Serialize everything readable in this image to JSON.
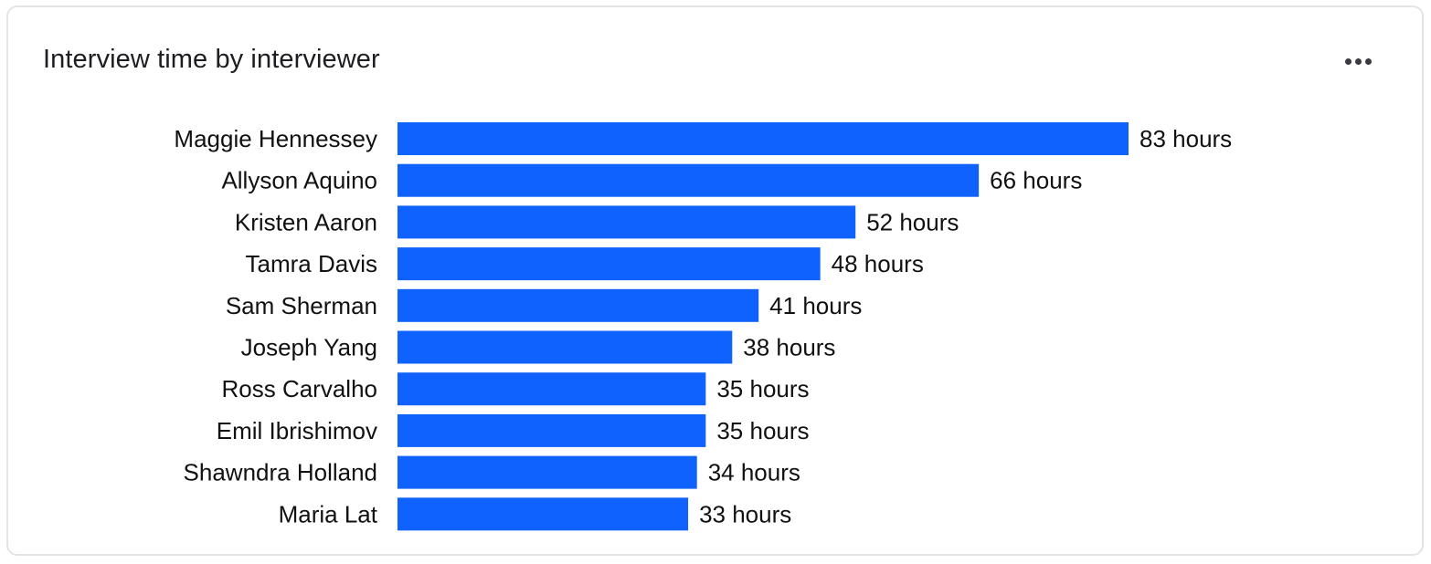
{
  "card": {
    "title": "Interview time by interviewer",
    "menu_icon": "more-horizontal-icon"
  },
  "colors": {
    "bar": "#0F62FE",
    "text": "#111113",
    "border": "#E4E4E7"
  },
  "chart_data": {
    "type": "bar",
    "orientation": "horizontal",
    "title": "Interview time by interviewer",
    "xlabel": "",
    "ylabel": "",
    "unit": "hours",
    "grid": false,
    "legend": "none",
    "categories": [
      "Maggie Hennessey",
      "Allyson Aquino",
      "Kristen Aaron",
      "Tamra Davis",
      "Sam Sherman",
      "Joseph Yang",
      "Ross Carvalho",
      "Emil Ibrishimov",
      "Shawndra Holland",
      "Maria Lat"
    ],
    "values": [
      83,
      66,
      52,
      48,
      41,
      38,
      35,
      35,
      34,
      33
    ],
    "value_labels": [
      "83 hours",
      "66 hours",
      "52 hours",
      "48 hours",
      "41 hours",
      "38 hours",
      "35 hours",
      "35 hours",
      "34 hours",
      "33 hours"
    ]
  }
}
